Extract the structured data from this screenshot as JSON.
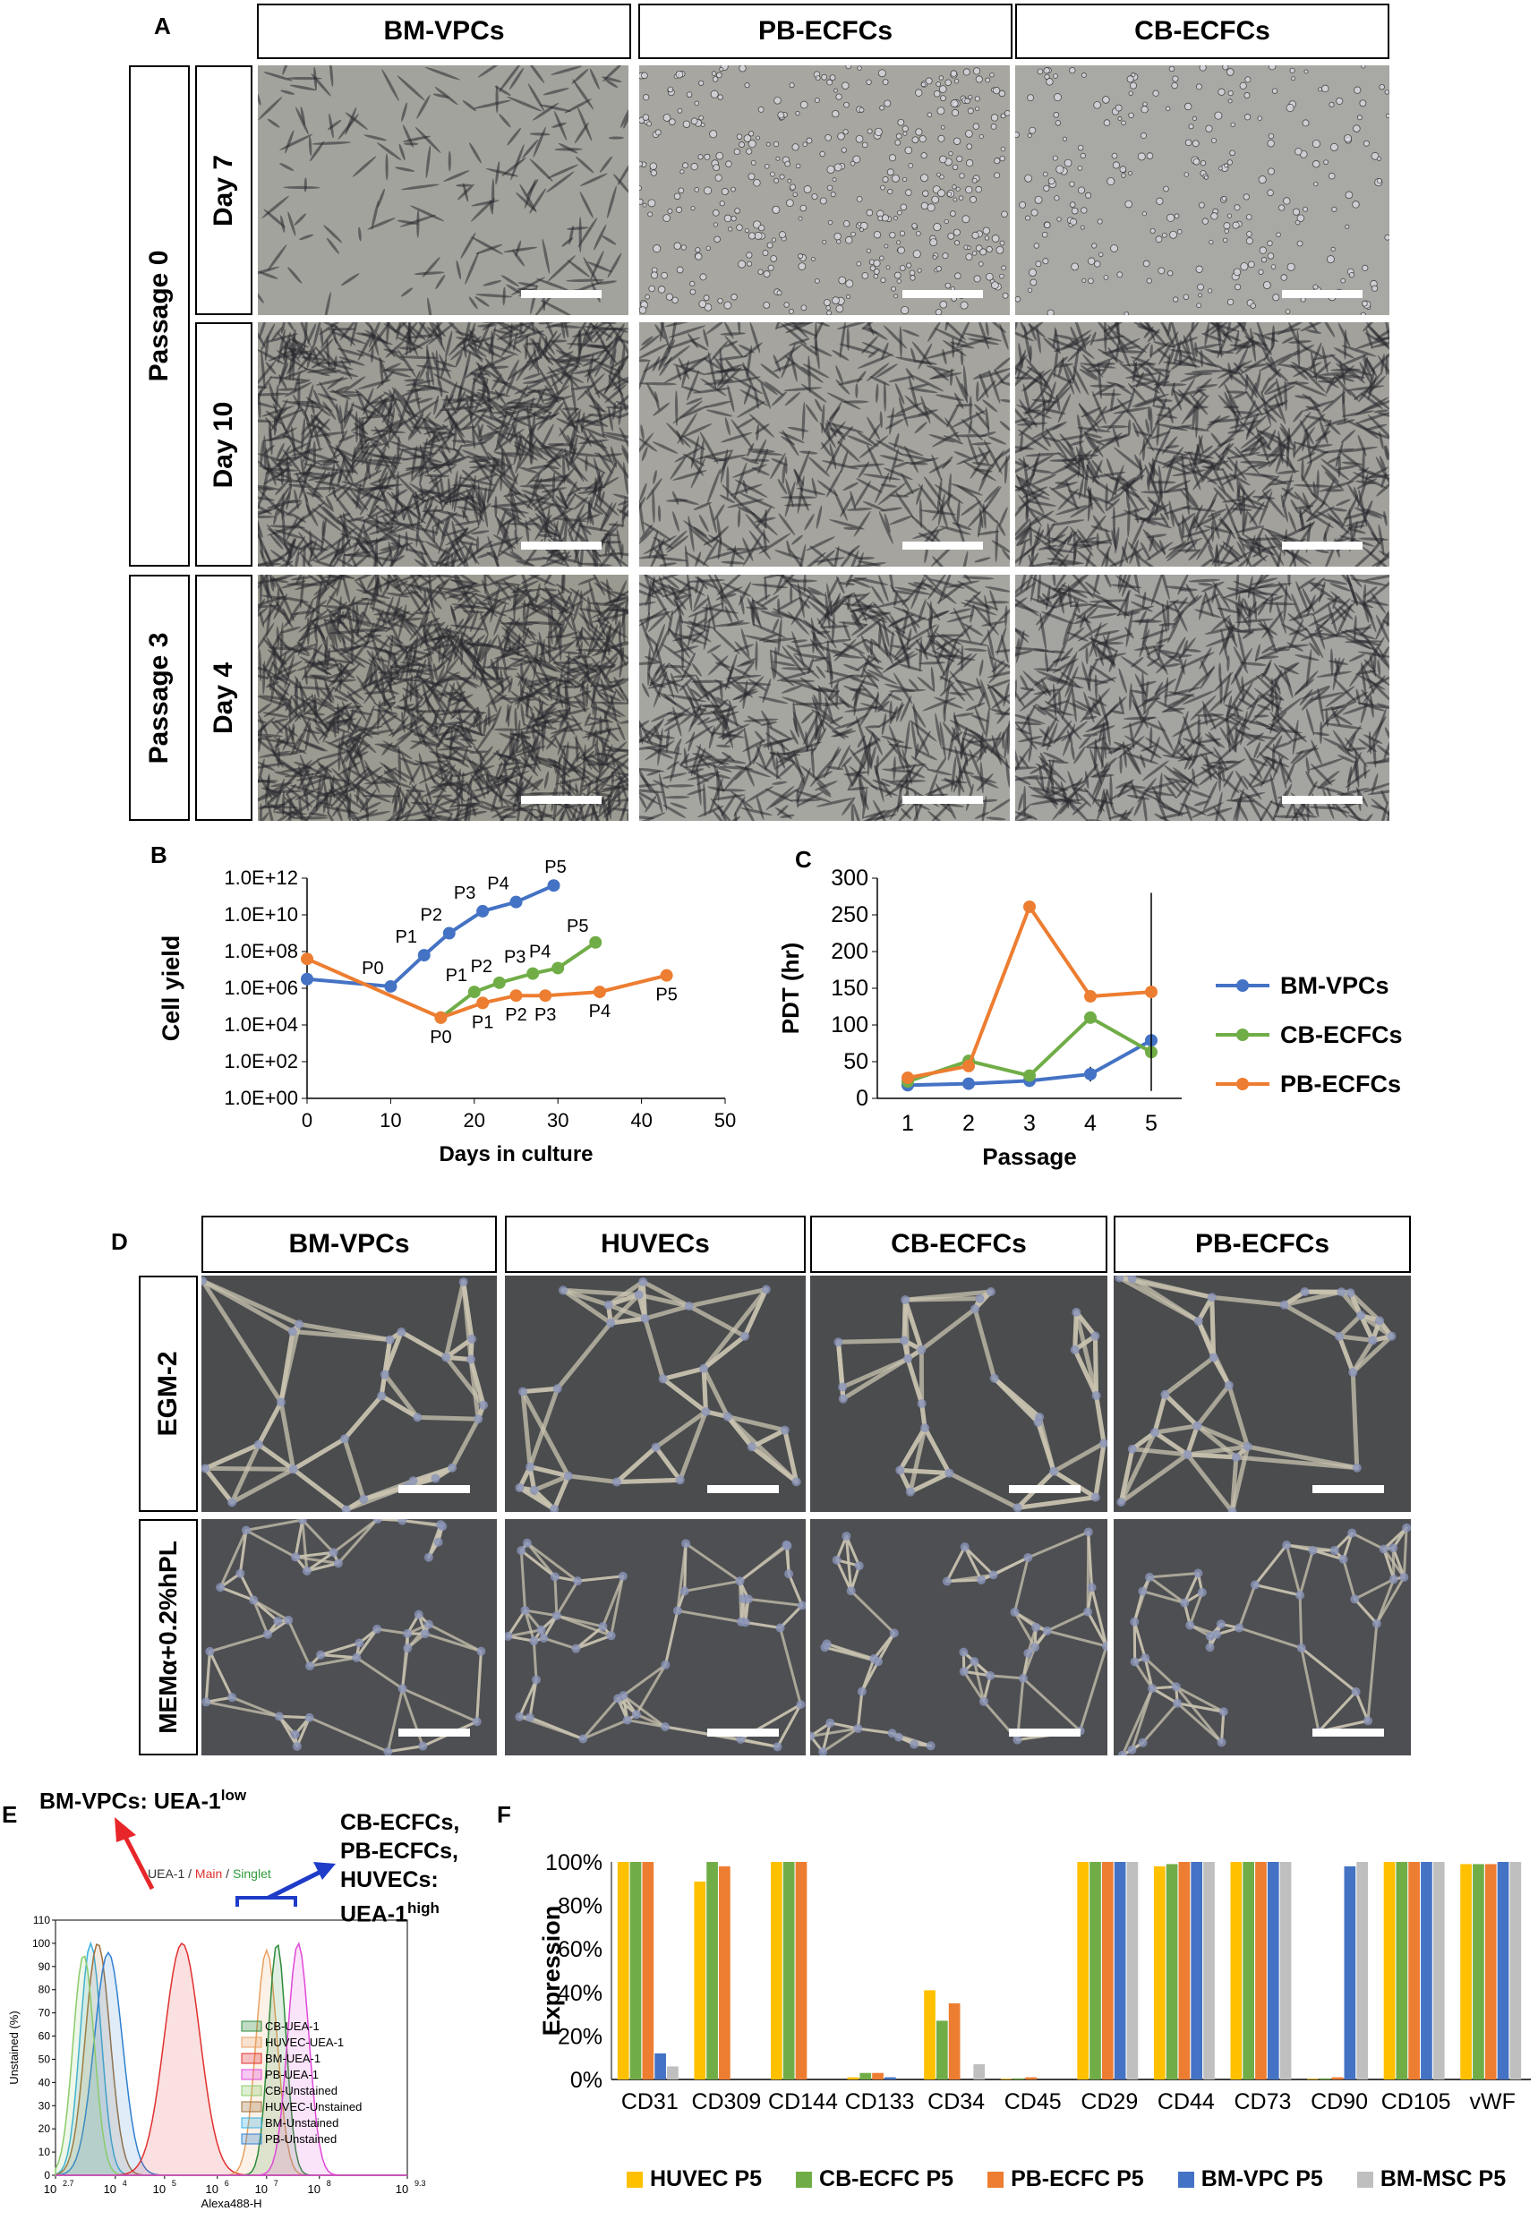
{
  "panel_letters": {
    "a": "A",
    "b": "B",
    "c": "C",
    "d": "D",
    "e": "E",
    "f": "F"
  },
  "panelA": {
    "columns": [
      "BM-VPCs",
      "PB-ECFCs",
      "CB-ECFCs"
    ],
    "passages": [
      "Passage 0",
      "Passage 3"
    ],
    "days": [
      "Day 7",
      "Day 10",
      "Day 4"
    ]
  },
  "panelD": {
    "columns": [
      "BM-VPCs",
      "HUVECs",
      "CB-ECFCs",
      "PB-ECFCs"
    ],
    "rows": [
      "EGM-2",
      "MEMα+0.2%hPL"
    ]
  },
  "colors": {
    "blue": "#4472C4",
    "green": "#70AD47",
    "orange": "#ED7D31",
    "yellow": "#FFC000",
    "gray": "#BFBFBF",
    "red": "#E8262A"
  },
  "panelE": {
    "annot_low": "BM-VPCs: UEA-1",
    "annot_low_sup": "low",
    "annot_high_lines": [
      "CB-ECFCs,",
      "PB-ECFCs,",
      "HUVECs:"
    ],
    "annot_high_last": "UEA-1",
    "annot_high_sup": "high",
    "header": {
      "a": "UEA-1",
      "sep1": " / ",
      "b": "Main",
      "sep2": " / ",
      "c": "Singlet"
    }
  },
  "chart_data": [
    {
      "id": "B",
      "type": "line",
      "ylabel": "Cell yield",
      "xlabel": "Days in culture",
      "yscale": "log",
      "yticks": [
        "1.0E+00",
        "1.0E+02",
        "1.0E+04",
        "1.0E+06",
        "1.0E+08",
        "1.0E+10",
        "1.0E+12"
      ],
      "xticks": [
        0,
        10,
        20,
        30,
        40,
        50
      ],
      "xlim": [
        0,
        50
      ],
      "ylim_log10": [
        0,
        12
      ],
      "series": [
        {
          "color": "#4472C4",
          "x": [
            0,
            10,
            14,
            17,
            21,
            25,
            29.5
          ],
          "log10y": [
            6.5,
            6.1,
            7.8,
            9.0,
            10.2,
            10.7,
            11.6
          ],
          "err": [
            0,
            0,
            0,
            0,
            0.3,
            0.2,
            0
          ],
          "labels": [
            "",
            "P0",
            "P1",
            "P2",
            "P3",
            "P4",
            "P5"
          ]
        },
        {
          "color": "#70AD47",
          "x": [
            16,
            20,
            23,
            27,
            30,
            34.5
          ],
          "log10y": [
            4.4,
            5.8,
            6.3,
            6.8,
            7.1,
            8.5
          ],
          "labels": [
            "",
            "P1",
            "P2",
            "P3",
            "P4",
            "P5"
          ]
        },
        {
          "color": "#ED7D31",
          "x": [
            0,
            16,
            21,
            25,
            28.5,
            35,
            43
          ],
          "log10y": [
            7.6,
            4.4,
            5.2,
            5.6,
            5.6,
            5.8,
            6.7
          ],
          "labels": [
            "",
            "P0",
            "P1",
            "P2",
            "P3",
            "P4",
            "P5"
          ]
        }
      ]
    },
    {
      "id": "C",
      "type": "line",
      "ylabel": "PDT (hr)",
      "xlabel": "Passage",
      "categories": [
        1,
        2,
        3,
        4,
        5
      ],
      "yticks": [
        0,
        50,
        100,
        150,
        200,
        250,
        300
      ],
      "ylim": [
        0,
        300
      ],
      "series": [
        {
          "name": "BM-VPCs",
          "color": "#4472C4",
          "values": [
            18,
            20,
            24,
            33,
            79
          ],
          "err": [
            0,
            0,
            0,
            10,
            0
          ]
        },
        {
          "name": "CB-ECFCs",
          "color": "#70AD47",
          "values": [
            23,
            51,
            31,
            110,
            63
          ]
        },
        {
          "name": "PB-ECFCs",
          "color": "#ED7D31",
          "values": [
            28,
            44,
            261,
            139,
            145
          ],
          "err": [
            0,
            0,
            0,
            0,
            135
          ]
        }
      ]
    },
    {
      "id": "E",
      "type": "line",
      "xlabel": "Alexa488-H",
      "ylabel": "Unstained (%)",
      "xticks": [
        "10",
        "10",
        "10",
        "10",
        "10",
        "10",
        "10"
      ],
      "xtick_exp": [
        "2.7",
        "4",
        "5",
        "6",
        "7",
        "8",
        "9.3"
      ],
      "yticks": [
        0,
        10,
        20,
        30,
        40,
        50,
        60,
        70,
        80,
        90,
        100,
        110
      ],
      "legend": [
        "CB-UEA-1",
        "HUVEC-UEA-1",
        "BM-UEA-1",
        "PB-UEA-1",
        "CB-Unstained",
        "HUVEC-Unstained",
        "BM-Unstained",
        "PB-Unstained"
      ],
      "legend_colors": [
        "#2E8B3A",
        "#E8A060",
        "#E0302E",
        "#E048D8",
        "#8ACB6A",
        "#A0703A",
        "#38B0E0",
        "#3080D0"
      ]
    },
    {
      "id": "F",
      "type": "bar",
      "ylabel": "Expression",
      "yticks": [
        "0%",
        "20%",
        "40%",
        "60%",
        "80%",
        "100%"
      ],
      "ylim": [
        0,
        100
      ],
      "categories": [
        "CD31",
        "CD309",
        "CD144",
        "CD133",
        "CD34",
        "CD45",
        "CD29",
        "CD44",
        "CD73",
        "CD90",
        "CD105",
        "vWF"
      ],
      "series": [
        {
          "name": "HUVEC P5",
          "color": "#FFC000",
          "values": [
            100,
            91,
            100,
            1,
            41,
            0.3,
            100,
            98,
            100,
            0.3,
            100,
            99
          ]
        },
        {
          "name": "CB-ECFC P5",
          "color": "#70AD47",
          "values": [
            100,
            100,
            100,
            3,
            27,
            0.5,
            100,
            99,
            100,
            0.5,
            100,
            99
          ]
        },
        {
          "name": "PB-ECFC P5",
          "color": "#ED7D31",
          "values": [
            100,
            98,
            100,
            3,
            35,
            1,
            100,
            100,
            100,
            1,
            100,
            99
          ]
        },
        {
          "name": "BM-VPC P5",
          "color": "#4472C4",
          "values": [
            12,
            0,
            0,
            1,
            0,
            0,
            100,
            100,
            100,
            98,
            100,
            100
          ]
        },
        {
          "name": "BM-MSC P5",
          "color": "#BFBFBF",
          "values": [
            6,
            0,
            0,
            0,
            7,
            0,
            100,
            100,
            100,
            100,
            100,
            100
          ]
        }
      ]
    }
  ]
}
